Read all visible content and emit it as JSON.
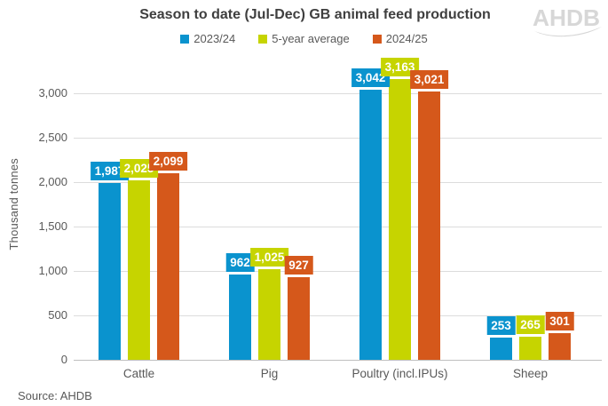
{
  "header": {
    "title": "Season to date (Jul-Dec) GB animal feed production",
    "logo_text": "AHDB",
    "logo_color": "#d7d7d7"
  },
  "footer": {
    "source": "Source: AHDB"
  },
  "chart_data": {
    "type": "bar",
    "title": "Season to date (Jul-Dec) GB animal feed production",
    "categories": [
      "Cattle",
      "Pig",
      "Poultry (incl.IPUs)",
      "Sheep"
    ],
    "series": [
      {
        "name": "2023/24",
        "color": "#0a93ce",
        "values": [
          1987,
          962,
          3042,
          253
        ]
      },
      {
        "name": "5-year average",
        "color": "#c6d400",
        "values": [
          2025,
          1025,
          3163,
          265
        ]
      },
      {
        "name": "2024/25",
        "color": "#d5581b",
        "values": [
          2099,
          927,
          3021,
          301
        ]
      }
    ],
    "xlabel": "",
    "ylabel": "Thousand tonnes",
    "ylim": [
      0,
      3450
    ],
    "yticks": [
      0,
      500,
      1000,
      1500,
      2000,
      2500,
      3000
    ],
    "ytick_labels": [
      "0",
      "500",
      "1,000",
      "1,500",
      "2,000",
      "2,500",
      "3,000"
    ],
    "grid": true,
    "legend_position": "top",
    "value_labels_shown": true,
    "colors": {
      "grid": "#dcdcdc",
      "baseline": "#bfbfbf",
      "axis_text": "#595959",
      "title_text": "#3f3f3f"
    }
  }
}
